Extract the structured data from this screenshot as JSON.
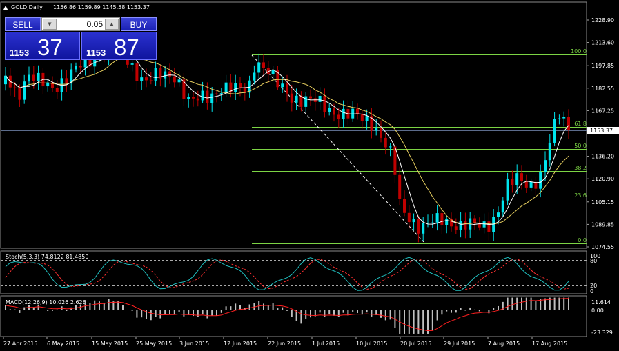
{
  "header": {
    "collapse_icon": "triangle-up-icon",
    "symbol": "GOLD,Daily",
    "ohlc": "1156.86 1159.89 1145.58 1153.37"
  },
  "trade_panel": {
    "sell_label": "SELL",
    "buy_label": "BUY",
    "lot_value": "0.05",
    "bid_prefix": "1153",
    "bid_big": "37",
    "ask_prefix": "1153",
    "ask_big": "87"
  },
  "price_axis": {
    "ticks": [
      "1228.90",
      "1213.60",
      "1197.85",
      "1182.55",
      "1167.25",
      "1153.37",
      "1136.20",
      "1120.90",
      "1105.15",
      "1089.85",
      "1074.55"
    ],
    "current_price": "1153.37"
  },
  "fibonacci": {
    "levels": [
      "100.0",
      "61.8",
      "50.0",
      "38.2",
      "23.6",
      "0.0"
    ]
  },
  "stochastic": {
    "label": "Stoch(5,3,3) 74.8122 81.4850",
    "ticks": [
      "100",
      "80",
      "20",
      "0"
    ]
  },
  "macd": {
    "label": "MACD(12,26,9) 10.026 2.626",
    "ticks": [
      "11.614",
      "0.00",
      "-23.329"
    ]
  },
  "time_axis": {
    "labels": [
      "27 Apr 2015",
      "6 May 2015",
      "15 May 2015",
      "25 May 2015",
      "3 Jun 2015",
      "12 Jun 2015",
      "22 Jun 2015",
      "1 Jul 2015",
      "10 Jul 2015",
      "20 Jul 2015",
      "29 Jul 2015",
      "7 Aug 2015",
      "17 Aug 2015"
    ]
  },
  "colors": {
    "background": "#000000",
    "bull": "#00e5ee",
    "bear": "#c00000",
    "fib": "#7cd444",
    "ma_fast": "#ffffff",
    "ma_slow": "#ffe680",
    "stoch_main": "#20c0c0",
    "stoch_signal": "#ff3030",
    "macd_hist": "#c0c0c0",
    "macd_signal": "#ff2020",
    "panel": "#1a20b4"
  }
}
